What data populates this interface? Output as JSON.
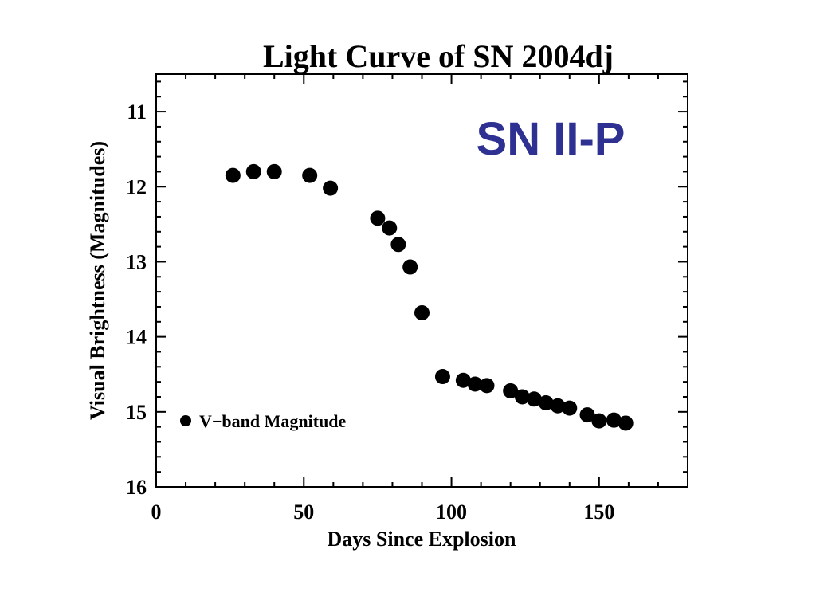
{
  "chart_data": {
    "type": "scatter",
    "title": "Light Curve of SN 2004dj",
    "xlabel": "Days Since Explosion",
    "ylabel": "Visual Brightness (Magnitudes)",
    "xlim": [
      0,
      180
    ],
    "ylim": [
      16,
      10.5
    ],
    "y_inverted": true,
    "xticks": [
      0,
      50,
      100,
      150
    ],
    "yticks": [
      11,
      12,
      13,
      14,
      15,
      16
    ],
    "grid": false,
    "legend_position": "bottom-left",
    "annotation": "SN II-P",
    "annotation_color": "#2e3192",
    "marker_color": "#000000",
    "series": [
      {
        "name": "V−band Magnitude",
        "x": [
          26,
          33,
          40,
          52,
          59,
          75,
          79,
          82,
          86,
          90,
          97,
          104,
          108,
          112,
          120,
          124,
          128,
          132,
          136,
          140,
          146,
          150,
          155,
          159
        ],
        "y": [
          11.85,
          11.8,
          11.8,
          11.85,
          12.02,
          12.42,
          12.55,
          12.77,
          13.07,
          13.68,
          14.53,
          14.58,
          14.63,
          14.65,
          14.72,
          14.8,
          14.83,
          14.88,
          14.92,
          14.95,
          15.04,
          15.12,
          15.11,
          15.15
        ]
      }
    ]
  }
}
